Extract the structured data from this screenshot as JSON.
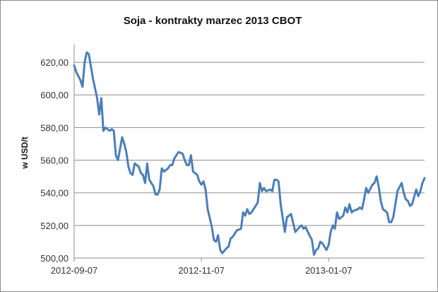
{
  "chart_data": {
    "type": "line",
    "title": "Soja - kontrakty marzec 2013 CBOT",
    "xlabel": "",
    "ylabel": "w USD/t",
    "ylim": [
      500,
      630
    ],
    "y_ticks": [
      "500,00",
      "520,00",
      "540,00",
      "560,00",
      "580,00",
      "600,00",
      "620,00"
    ],
    "y_tick_values": [
      500,
      520,
      540,
      560,
      580,
      600,
      620
    ],
    "x_tick_labels": [
      "2012-09-07",
      "2012-11-07",
      "2013-01-07"
    ],
    "x_tick_dates": [
      "2012-09-07",
      "2012-11-07",
      "2013-01-07"
    ],
    "grid": true,
    "legend": "none",
    "series": [
      {
        "color": "#4a7ebb",
        "points": [
          [
            "2012-09-07",
            618
          ],
          [
            "2012-09-08",
            614
          ],
          [
            "2012-09-10",
            609
          ],
          [
            "2012-09-11",
            605
          ],
          [
            "2012-09-12",
            620
          ],
          [
            "2012-09-13",
            626
          ],
          [
            "2012-09-14",
            625
          ],
          [
            "2012-09-16",
            610
          ],
          [
            "2012-09-18",
            598
          ],
          [
            "2012-09-19",
            588
          ],
          [
            "2012-09-20",
            598
          ],
          [
            "2012-09-21",
            578
          ],
          [
            "2012-09-22",
            580
          ],
          [
            "2012-09-24",
            578
          ],
          [
            "2012-09-25",
            579
          ],
          [
            "2012-09-26",
            578
          ],
          [
            "2012-09-27",
            563
          ],
          [
            "2012-09-28",
            560
          ],
          [
            "2012-09-30",
            574
          ],
          [
            "2012-10-01",
            570
          ],
          [
            "2012-10-02",
            565
          ],
          [
            "2012-10-03",
            556
          ],
          [
            "2012-10-04",
            552
          ],
          [
            "2012-10-05",
            551
          ],
          [
            "2012-10-06",
            558
          ],
          [
            "2012-10-08",
            556
          ],
          [
            "2012-10-09",
            552
          ],
          [
            "2012-10-10",
            551
          ],
          [
            "2012-10-11",
            546
          ],
          [
            "2012-10-12",
            558
          ],
          [
            "2012-10-13",
            548
          ],
          [
            "2012-10-15",
            544
          ],
          [
            "2012-10-16",
            539
          ],
          [
            "2012-10-17",
            539
          ],
          [
            "2012-10-18",
            542
          ],
          [
            "2012-10-19",
            555
          ],
          [
            "2012-10-20",
            553
          ],
          [
            "2012-10-22",
            555
          ],
          [
            "2012-10-23",
            557
          ],
          [
            "2012-10-24",
            557
          ],
          [
            "2012-10-25",
            561
          ],
          [
            "2012-10-26",
            563
          ],
          [
            "2012-10-27",
            565
          ],
          [
            "2012-10-29",
            564
          ],
          [
            "2012-10-30",
            560
          ],
          [
            "2012-10-31",
            557
          ],
          [
            "2012-11-01",
            557
          ],
          [
            "2012-11-02",
            563
          ],
          [
            "2012-11-03",
            553
          ],
          [
            "2012-11-05",
            551
          ],
          [
            "2012-11-06",
            547
          ],
          [
            "2012-11-07",
            545
          ],
          [
            "2012-11-08",
            547
          ],
          [
            "2012-11-09",
            542
          ],
          [
            "2012-11-10",
            530
          ],
          [
            "2012-11-12",
            519
          ],
          [
            "2012-11-13",
            511
          ],
          [
            "2012-11-14",
            510
          ],
          [
            "2012-11-15",
            514
          ],
          [
            "2012-11-16",
            505
          ],
          [
            "2012-11-17",
            503
          ],
          [
            "2012-11-19",
            506
          ],
          [
            "2012-11-20",
            507
          ],
          [
            "2012-11-21",
            512
          ],
          [
            "2012-11-22",
            513
          ],
          [
            "2012-11-23",
            515
          ],
          [
            "2012-11-24",
            517
          ],
          [
            "2012-11-26",
            518
          ],
          [
            "2012-11-27",
            528
          ],
          [
            "2012-11-28",
            526
          ],
          [
            "2012-11-29",
            530
          ],
          [
            "2012-11-30",
            527
          ],
          [
            "2012-12-01",
            528
          ],
          [
            "2012-12-03",
            532
          ],
          [
            "2012-12-04",
            534
          ],
          [
            "2012-12-05",
            546
          ],
          [
            "2012-12-06",
            541
          ],
          [
            "2012-12-07",
            543
          ],
          [
            "2012-12-08",
            541
          ],
          [
            "2012-12-10",
            542
          ],
          [
            "2012-12-11",
            541
          ],
          [
            "2012-12-12",
            548
          ],
          [
            "2012-12-13",
            548
          ],
          [
            "2012-12-14",
            547
          ],
          [
            "2012-12-15",
            533
          ],
          [
            "2012-12-17",
            516
          ],
          [
            "2012-12-18",
            525
          ],
          [
            "2012-12-19",
            526
          ],
          [
            "2012-12-20",
            527
          ],
          [
            "2012-12-22",
            516
          ],
          [
            "2012-12-24",
            519
          ],
          [
            "2012-12-25",
            520
          ],
          [
            "2012-12-26",
            518
          ],
          [
            "2012-12-27",
            519
          ],
          [
            "2012-12-28",
            516
          ],
          [
            "2012-12-30",
            511
          ],
          [
            "2012-12-31",
            502
          ],
          [
            "2013-01-01",
            505
          ],
          [
            "2013-01-02",
            506
          ],
          [
            "2013-01-03",
            510
          ],
          [
            "2013-01-04",
            509
          ],
          [
            "2013-01-06",
            505
          ],
          [
            "2013-01-07",
            508
          ],
          [
            "2013-01-08",
            516
          ],
          [
            "2013-01-09",
            520
          ],
          [
            "2013-01-10",
            518
          ],
          [
            "2013-01-11",
            528
          ],
          [
            "2013-01-12",
            524
          ],
          [
            "2013-01-14",
            526
          ],
          [
            "2013-01-15",
            531
          ],
          [
            "2013-01-16",
            528
          ],
          [
            "2013-01-17",
            533
          ],
          [
            "2013-01-18",
            528
          ],
          [
            "2013-01-19",
            529
          ],
          [
            "2013-01-21",
            530
          ],
          [
            "2013-01-22",
            531
          ],
          [
            "2013-01-23",
            530
          ],
          [
            "2013-01-24",
            536
          ],
          [
            "2013-01-25",
            543
          ],
          [
            "2013-01-26",
            540
          ],
          [
            "2013-01-28",
            545
          ],
          [
            "2013-01-29",
            546
          ],
          [
            "2013-01-30",
            550
          ],
          [
            "2013-01-31",
            544
          ],
          [
            "2013-02-01",
            535
          ],
          [
            "2013-02-02",
            530
          ],
          [
            "2013-02-04",
            528
          ],
          [
            "2013-02-05",
            522
          ],
          [
            "2013-02-06",
            522
          ],
          [
            "2013-02-07",
            525
          ],
          [
            "2013-02-08",
            533
          ],
          [
            "2013-02-09",
            541
          ],
          [
            "2013-02-11",
            546
          ],
          [
            "2013-02-12",
            540
          ],
          [
            "2013-02-13",
            536
          ],
          [
            "2013-02-14",
            535
          ],
          [
            "2013-02-15",
            532
          ],
          [
            "2013-02-16",
            533
          ],
          [
            "2013-02-18",
            542
          ],
          [
            "2013-02-19",
            538
          ],
          [
            "2013-02-20",
            541
          ],
          [
            "2013-02-21",
            546
          ],
          [
            "2013-02-22",
            549
          ]
        ]
      }
    ]
  }
}
